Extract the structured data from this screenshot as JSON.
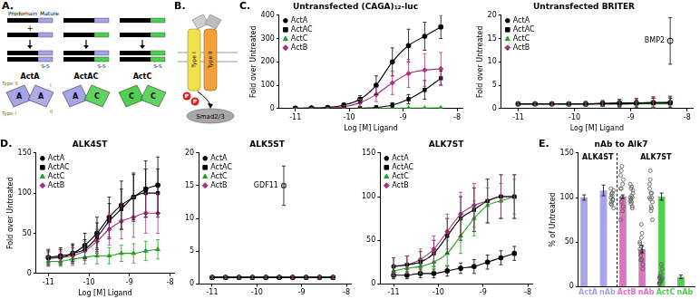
{
  "chart_data": [
    {
      "panel": "C.",
      "type": "line",
      "title": "Untransfected (CAGA)₁₂-luc",
      "x_label": "Log [M] Ligand",
      "y_label": "Fold over Untreated",
      "xlim": [
        -11.3,
        -7.9
      ],
      "xticks": [
        -11,
        -10,
        -9,
        -8
      ],
      "ylim": [
        0,
        400
      ],
      "yticks": [
        0,
        100,
        200,
        300,
        400
      ],
      "grid": false,
      "legend": "upper left",
      "x": [
        -11,
        -10.7,
        -10.4,
        -10.1,
        -9.8,
        -9.5,
        -9.2,
        -8.9,
        -8.6,
        -8.3
      ],
      "series": [
        {
          "name": "ActA",
          "color": "#000000",
          "marker": "circle",
          "values": [
            2,
            3,
            5,
            15,
            40,
            100,
            200,
            270,
            310,
            350
          ],
          "errors": [
            1,
            1,
            2,
            5,
            15,
            40,
            60,
            70,
            60,
            50
          ]
        },
        {
          "name": "ActAC",
          "color": "#000000",
          "marker": "square",
          "values": [
            1,
            1,
            1,
            1,
            2,
            5,
            15,
            40,
            80,
            130
          ],
          "errors": [
            1,
            1,
            1,
            1,
            2,
            5,
            10,
            20,
            40,
            30
          ]
        },
        {
          "name": "ActC",
          "color": "#22a022",
          "marker": "triangle",
          "values": [
            1,
            1,
            1,
            1,
            1,
            1,
            1,
            2,
            2,
            3
          ],
          "errors": [
            1,
            1,
            1,
            1,
            1,
            1,
            1,
            1,
            1,
            1
          ]
        },
        {
          "name": "ActB",
          "color": "#a8327f",
          "marker": "diamond",
          "values": [
            1,
            2,
            3,
            8,
            25,
            60,
            110,
            150,
            165,
            170
          ],
          "errors": [
            1,
            1,
            2,
            5,
            15,
            30,
            50,
            60,
            70,
            70
          ]
        }
      ]
    },
    {
      "type": "line",
      "title": "Untransfected BRITER",
      "x_label": "Log [M] Ligand",
      "y_label": "Fold over Untreated",
      "xlim": [
        -11.3,
        -7.9
      ],
      "xticks": [
        -11,
        -10,
        -9,
        -8
      ],
      "ylim": [
        0,
        20
      ],
      "yticks": [
        0,
        5,
        10,
        15,
        20
      ],
      "grid": false,
      "legend": "upper left",
      "x": [
        -11,
        -10.7,
        -10.4,
        -10.1,
        -9.8,
        -9.5,
        -9.2,
        -8.9,
        -8.6,
        -8.3
      ],
      "series": [
        {
          "name": "ActA",
          "color": "#000000",
          "marker": "circle",
          "values": [
            1,
            1,
            1,
            1,
            1,
            1.1,
            1.2,
            1.2,
            1.3,
            1.3
          ],
          "errors": [
            0.3,
            0.3,
            0.3,
            0.4,
            0.5,
            0.6,
            0.8,
            1,
            1.2,
            1.2
          ]
        },
        {
          "name": "ActAC",
          "color": "#000000",
          "marker": "square",
          "values": [
            1,
            1,
            1,
            1,
            1,
            1,
            1,
            1.1,
            1.2,
            1.2
          ],
          "errors": [
            0.3,
            0.3,
            0.3,
            0.3,
            0.4,
            0.5,
            0.6,
            0.8,
            1,
            1
          ]
        },
        {
          "name": "ActC",
          "color": "#22a022",
          "marker": "triangle",
          "values": [
            1,
            1,
            1,
            1,
            1,
            1,
            1,
            1,
            1,
            1
          ],
          "errors": [
            0.3,
            0.3,
            0.3,
            0.3,
            0.3,
            0.3,
            0.4,
            0.4,
            0.5,
            0.5
          ]
        },
        {
          "name": "ActB",
          "color": "#a8327f",
          "marker": "diamond",
          "values": [
            1,
            1,
            1,
            1,
            1,
            1.1,
            1.1,
            1.2,
            1.2,
            1.3
          ],
          "errors": [
            0.3,
            0.3,
            0.3,
            0.4,
            0.5,
            0.6,
            0.8,
            1,
            1.2,
            1.4
          ]
        }
      ],
      "annotations": [
        {
          "text": "BMP2",
          "x": -8.3,
          "y": 14.5,
          "error": 5,
          "marker": "circle",
          "color": "#000000"
        }
      ]
    },
    {
      "panel": "D.",
      "type": "line",
      "title": "ALK4ST",
      "x_label": "Log [M] Ligand",
      "y_label": "Fold over Untreated",
      "xlim": [
        -11.3,
        -7.9
      ],
      "xticks": [
        -11,
        -10,
        -9,
        -8
      ],
      "ylim": [
        0,
        150
      ],
      "yticks": [
        0,
        50,
        100,
        150
      ],
      "grid": false,
      "legend": "upper left",
      "x": [
        -11,
        -10.7,
        -10.4,
        -10.1,
        -9.8,
        -9.5,
        -9.2,
        -8.9,
        -8.6,
        -8.3
      ],
      "series": [
        {
          "name": "ActA",
          "color": "#000000",
          "marker": "circle",
          "values": [
            20,
            22,
            25,
            35,
            50,
            70,
            85,
            95,
            105,
            110
          ],
          "errors": [
            10,
            10,
            12,
            15,
            20,
            25,
            30,
            30,
            35,
            35
          ]
        },
        {
          "name": "ActAC",
          "color": "#000000",
          "marker": "square",
          "values": [
            20,
            20,
            25,
            30,
            45,
            65,
            80,
            95,
            100,
            100
          ],
          "errors": [
            8,
            10,
            10,
            12,
            18,
            22,
            25,
            28,
            30,
            30
          ]
        },
        {
          "name": "ActC",
          "color": "#22a022",
          "marker": "triangle",
          "values": [
            15,
            15,
            18,
            20,
            22,
            22,
            25,
            25,
            28,
            30
          ],
          "errors": [
            6,
            6,
            8,
            8,
            10,
            10,
            10,
            12,
            12,
            12
          ]
        },
        {
          "name": "ActB",
          "color": "#a8327f",
          "marker": "diamond",
          "values": [
            18,
            20,
            22,
            28,
            40,
            55,
            65,
            70,
            75,
            75
          ],
          "errors": [
            8,
            8,
            10,
            12,
            15,
            20,
            22,
            25,
            25,
            25
          ]
        }
      ]
    },
    {
      "type": "line",
      "title": "ALK5ST",
      "xlim": [
        -11.3,
        -7.9
      ],
      "xticks": [
        -11,
        -10,
        -9,
        -8
      ],
      "ylim": [
        0,
        20
      ],
      "yticks": [
        0,
        5,
        10,
        15,
        20
      ],
      "grid": false,
      "legend": "upper left",
      "x": [
        -11,
        -10.7,
        -10.4,
        -10.1,
        -9.8,
        -9.5,
        -9.2,
        -8.9,
        -8.6,
        -8.3
      ],
      "series": [
        {
          "name": "ActA",
          "color": "#000000",
          "marker": "circle",
          "values": [
            1,
            1,
            1,
            1,
            1,
            1,
            1,
            1,
            1,
            1
          ],
          "errors": [
            0.2,
            0.2,
            0.2,
            0.2,
            0.2,
            0.2,
            0.2,
            0.2,
            0.2,
            0.2
          ]
        },
        {
          "name": "ActAC",
          "color": "#000000",
          "marker": "square",
          "values": [
            1,
            1,
            1,
            1,
            1,
            1,
            1,
            1,
            1,
            1
          ],
          "errors": [
            0.2,
            0.2,
            0.2,
            0.2,
            0.2,
            0.2,
            0.2,
            0.2,
            0.2,
            0.2
          ]
        },
        {
          "name": "ActC",
          "color": "#22a022",
          "marker": "triangle",
          "values": [
            1,
            1,
            1,
            1,
            1,
            1,
            1,
            1,
            1,
            1
          ],
          "errors": [
            0.2,
            0.2,
            0.2,
            0.2,
            0.2,
            0.2,
            0.2,
            0.2,
            0.2,
            0.2
          ]
        },
        {
          "name": "ActB",
          "color": "#a8327f",
          "marker": "diamond",
          "values": [
            1,
            1,
            1,
            1,
            1,
            1,
            1,
            1,
            1,
            1
          ],
          "errors": [
            0.2,
            0.2,
            0.2,
            0.2,
            0.2,
            0.2,
            0.2,
            0.2,
            0.2,
            0.2
          ]
        }
      ],
      "annotations": [
        {
          "text": "GDF11",
          "x": -9.4,
          "y": 15,
          "error": 3,
          "marker": "square",
          "color": "#000000"
        }
      ]
    },
    {
      "type": "line",
      "title": "ALK7ST",
      "xlim": [
        -11.3,
        -7.9
      ],
      "xticks": [
        -11,
        -10,
        -9,
        -8
      ],
      "ylim": [
        0,
        150
      ],
      "yticks": [
        0,
        50,
        100,
        150
      ],
      "grid": false,
      "legend": "upper left",
      "x": [
        -11,
        -10.7,
        -10.4,
        -10.1,
        -9.8,
        -9.5,
        -9.2,
        -8.9,
        -8.6,
        -8.3
      ],
      "series": [
        {
          "name": "ActA",
          "color": "#000000",
          "marker": "circle",
          "values": [
            10,
            10,
            12,
            12,
            15,
            18,
            20,
            25,
            30,
            35
          ],
          "errors": [
            4,
            4,
            5,
            5,
            6,
            6,
            8,
            8,
            8,
            8
          ]
        },
        {
          "name": "ActAC",
          "color": "#000000",
          "marker": "square",
          "values": [
            20,
            22,
            25,
            35,
            55,
            75,
            85,
            95,
            100,
            100
          ],
          "errors": [
            10,
            10,
            12,
            15,
            20,
            25,
            25,
            25,
            25,
            25
          ]
        },
        {
          "name": "ActC",
          "color": "#22a022",
          "marker": "triangle",
          "values": [
            15,
            18,
            20,
            25,
            35,
            55,
            75,
            90,
            95,
            100
          ],
          "errors": [
            6,
            6,
            8,
            10,
            15,
            20,
            20,
            20,
            20,
            20
          ]
        },
        {
          "name": "ActB",
          "color": "#a8327f",
          "marker": "diamond",
          "values": [
            20,
            22,
            28,
            40,
            60,
            80,
            90,
            95,
            100,
            100
          ],
          "errors": [
            10,
            10,
            12,
            15,
            20,
            25,
            25,
            25,
            25,
            25
          ]
        }
      ]
    },
    {
      "panel": "E.",
      "type": "bar",
      "title": "nAb to Alk7",
      "y_label": "% of Untreated",
      "categories": [
        "ActA",
        "nAb",
        "ActB",
        "nAb",
        "ActC",
        "nAb"
      ],
      "values": [
        100,
        108,
        101,
        42,
        101,
        11
      ],
      "errors": [
        3,
        6,
        2,
        4,
        4,
        2
      ],
      "colors": [
        "#a7a3e8",
        "#a7a3e8",
        "#e070c0",
        "#e070c0",
        "#4fcf4f",
        "#4fcf4f"
      ],
      "points": [
        [
          100,
          92,
          105,
          98,
          88,
          110,
          95,
          102,
          97,
          108,
          93,
          104
        ],
        [
          110,
          95,
          135,
          85,
          120,
          75,
          130,
          100,
          115,
          90,
          125,
          110
        ],
        [
          100,
          110,
          95,
          90,
          105,
          115,
          98,
          102,
          88,
          108,
          96,
          93,
          112,
          100
        ],
        [
          42,
          30,
          55,
          60,
          25,
          48,
          35,
          70,
          40,
          20,
          50,
          38,
          45,
          30
        ],
        [
          100,
          120,
          85,
          105,
          95,
          110,
          130,
          90,
          100,
          75,
          115,
          98,
          105,
          88
        ],
        [
          10,
          5,
          15,
          8,
          20,
          3,
          12,
          6,
          25,
          10,
          4,
          9
        ]
      ],
      "groups": [
        {
          "name": "ALK4ST",
          "size": 2
        },
        {
          "name": "ALK7ST",
          "size": 4
        }
      ],
      "ylim": [
        0,
        150
      ],
      "yticks": [
        0,
        50,
        100,
        150
      ],
      "grid": false
    }
  ],
  "diagrams": [
    {
      "panel": "A.",
      "labels": {
        "prodomain": "Prodomain",
        "mature": "Mature",
        "plus": "+",
        "bond": "S-S",
        "type_ii": "Type II",
        "type_i": "Type I",
        "short_i": "I",
        "short_ii": "II"
      },
      "ligands": [
        {
          "name": "ActA",
          "chains": [
            "A",
            "A"
          ],
          "colors": [
            "#a7a3e8",
            "#a7a3e8"
          ]
        },
        {
          "name": "ActAC",
          "chains": [
            "A",
            "C"
          ],
          "colors": [
            "#a7a3e8",
            "#4fcf4f"
          ]
        },
        {
          "name": "ActC",
          "chains": [
            "C",
            "C"
          ],
          "colors": [
            "#4fcf4f",
            "#4fcf4f"
          ]
        }
      ]
    },
    {
      "panel": "B.",
      "labels": {
        "type_i": "Type I",
        "type_ii": "Type II",
        "phospho": "P",
        "smad": "Smad2/3"
      }
    }
  ]
}
